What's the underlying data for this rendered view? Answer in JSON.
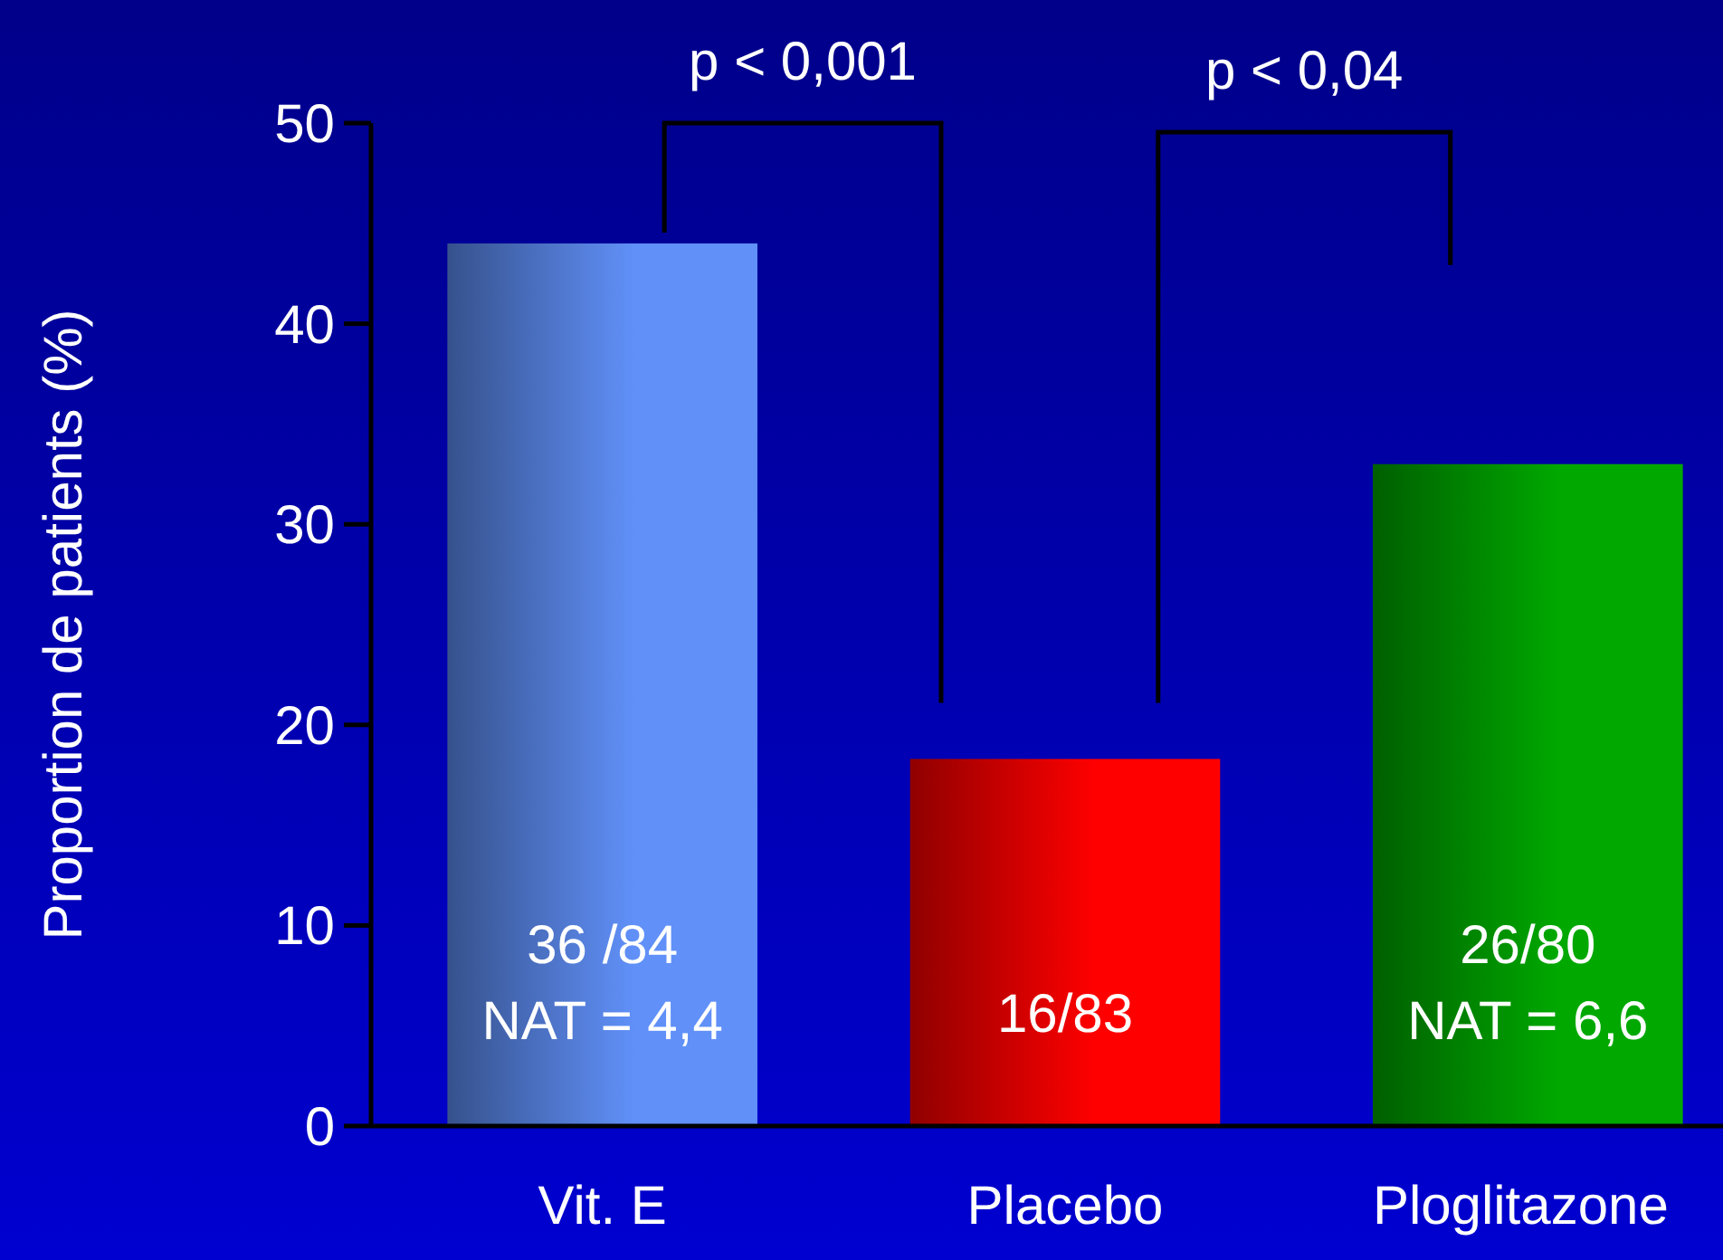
{
  "chart_data": {
    "type": "bar",
    "ylabel": "Proportion de patients (%)",
    "categories": [
      "Vit. E",
      "Placebo",
      "Ploglitazone"
    ],
    "values": [
      44,
      18.3,
      33
    ],
    "colors": [
      "#6090f8",
      "#ff0000",
      "#00a800"
    ],
    "ylim": [
      0,
      50
    ],
    "yticks": [
      0,
      10,
      20,
      30,
      40,
      50
    ],
    "annotations": [
      "p < 0,001",
      "p < 0,04",
      "36 /84\nNAT = 4,4",
      "16/83",
      "26/80\nNAT = 6,6"
    ]
  }
}
